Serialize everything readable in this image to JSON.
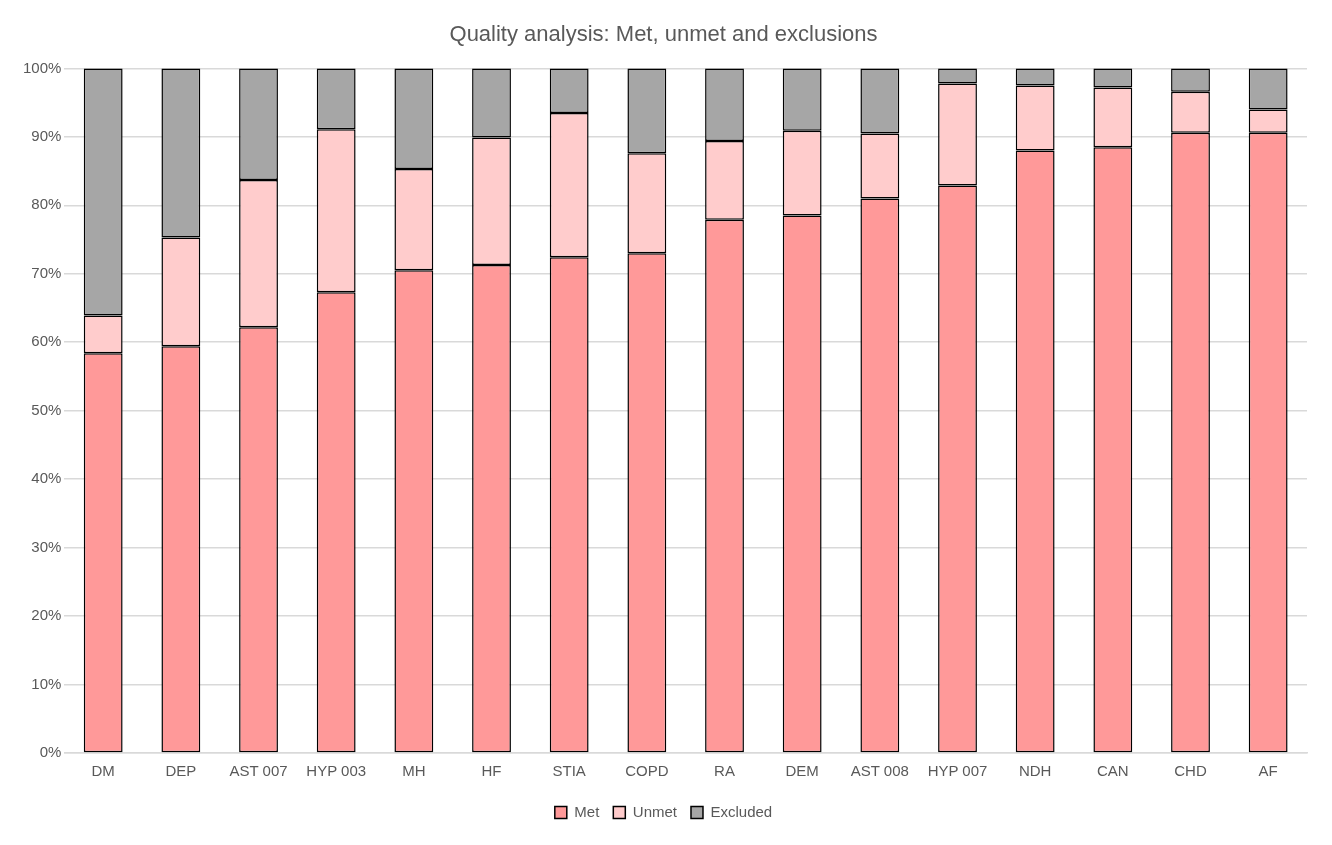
{
  "chart_data": {
    "type": "bar",
    "title": "Quality analysis: Met, unmet and exclusions",
    "categories": [
      "DM",
      "DEP",
      "AST 007",
      "HYP 003",
      "MH",
      "HF",
      "STIA",
      "COPD",
      "RA",
      "DEM",
      "AST 008",
      "HYP 007",
      "NDH",
      "CAN",
      "CHD",
      "AF"
    ],
    "stacked": true,
    "series": [
      {
        "name": "Met",
        "color": "#ff9999",
        "values": [
          58.4,
          59.4,
          62.2,
          67.3,
          70.5,
          71.3,
          72.4,
          73.0,
          77.9,
          78.5,
          81.0,
          82.9,
          88.0,
          88.5,
          90.6,
          90.6
        ]
      },
      {
        "name": "Unmet",
        "color": "#ffcccc",
        "values": [
          5.5,
          15.9,
          21.5,
          23.8,
          14.8,
          18.6,
          21.1,
          14.6,
          11.5,
          12.4,
          9.5,
          14.9,
          9.5,
          8.7,
          6.0,
          3.4
        ]
      },
      {
        "name": "Excluded",
        "color": "#a6a6a6",
        "values": [
          36.1,
          24.7,
          16.3,
          8.9,
          14.7,
          10.1,
          6.5,
          12.4,
          10.6,
          9.1,
          9.5,
          2.2,
          2.5,
          2.8,
          3.4,
          6.0
        ]
      }
    ],
    "ylim": [
      0,
      100
    ],
    "yticks": [
      {
        "value": 0,
        "label": "0%"
      },
      {
        "value": 10,
        "label": "10%"
      },
      {
        "value": 20,
        "label": "20%"
      },
      {
        "value": 30,
        "label": "30%"
      },
      {
        "value": 40,
        "label": "40%"
      },
      {
        "value": 50,
        "label": "50%"
      },
      {
        "value": 60,
        "label": "60%"
      },
      {
        "value": 70,
        "label": "70%"
      },
      {
        "value": 80,
        "label": "80%"
      },
      {
        "value": 90,
        "label": "90%"
      },
      {
        "value": 100,
        "label": "100%"
      }
    ],
    "grid": "y",
    "legend": "bottom"
  }
}
